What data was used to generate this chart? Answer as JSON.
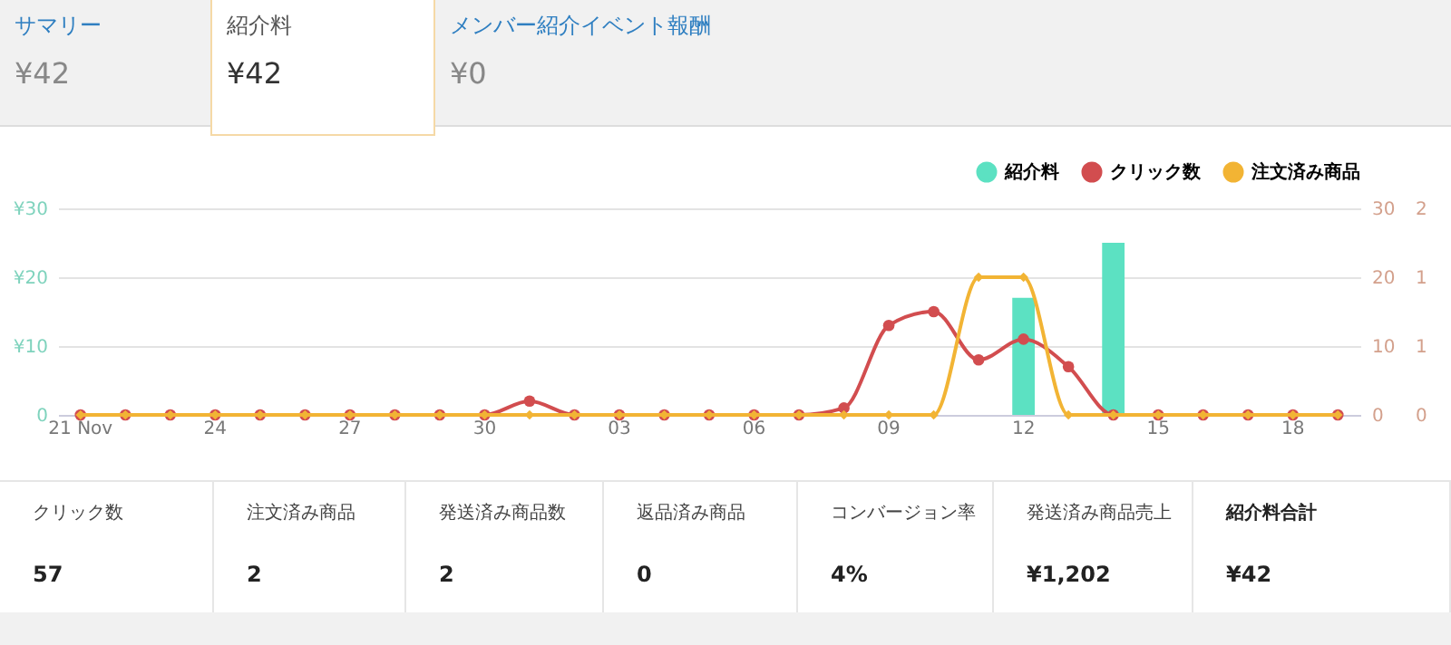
{
  "chart_data": {
    "type": "bar",
    "categories": [
      "21 Nov",
      null,
      null,
      "24",
      null,
      null,
      "27",
      null,
      null,
      "30",
      null,
      null,
      "03",
      null,
      null,
      "06",
      null,
      null,
      "09",
      null,
      null,
      "12",
      null,
      null,
      "15",
      null,
      null,
      "18",
      null
    ],
    "series": [
      {
        "name": "紹介料",
        "color": "#5ce1c2",
        "values": [
          0,
          0,
          0,
          0,
          0,
          0,
          0,
          0,
          0,
          0,
          0,
          0,
          0,
          0,
          0,
          0,
          0,
          0,
          0,
          0,
          0,
          17,
          0,
          25,
          0,
          0,
          0,
          0,
          0
        ]
      },
      {
        "name": "クリック数",
        "type": "line",
        "axis": "y2",
        "marker": "circle",
        "color": "#d24d4f",
        "values": [
          0,
          0,
          0,
          0,
          0,
          0,
          0,
          0,
          0,
          0,
          2,
          0,
          0,
          0,
          0,
          0,
          0,
          1,
          13,
          15,
          8,
          11,
          7,
          0,
          0,
          0,
          0,
          0,
          0
        ]
      },
      {
        "name": "注文済み商品",
        "type": "line",
        "axis": "y3",
        "marker": "diamond",
        "color": "#f2b434",
        "values": [
          0,
          0,
          0,
          0,
          0,
          0,
          0,
          0,
          0,
          0,
          0,
          0,
          0,
          0,
          0,
          0,
          0,
          0,
          0,
          0,
          1,
          1,
          0,
          0,
          0,
          0,
          0,
          0,
          0
        ]
      }
    ],
    "ylim": [
      0,
      30
    ],
    "yticks": [
      0,
      {
        "value": 10,
        "label": "¥10"
      },
      {
        "value": 20,
        "label": "¥20"
      },
      {
        "value": 30,
        "label": "¥30"
      }
    ],
    "y2lim": [
      0,
      30
    ],
    "y2ticks": [
      0,
      10,
      20,
      30
    ],
    "y3lim": [
      0,
      1.5
    ],
    "y3ticks": [
      0,
      {
        "value": 0.5,
        "label": "1"
      },
      1,
      {
        "value": 1.5,
        "label": "2"
      }
    ],
    "grid": "y",
    "legend": "top right",
    "annotations": [
      "サマリー",
      "¥42",
      "紹介料",
      "¥42",
      "メンバー紹介イベント報酬",
      "¥0",
      "クリック数",
      "57",
      "注文済み商品",
      "2",
      "発送済み商品数",
      "2",
      "返品済み商品",
      "0",
      "コンバージョン率",
      "4%",
      "発送済み商品売上",
      "¥1,202",
      "紹介料合計",
      "¥42"
    ]
  }
}
